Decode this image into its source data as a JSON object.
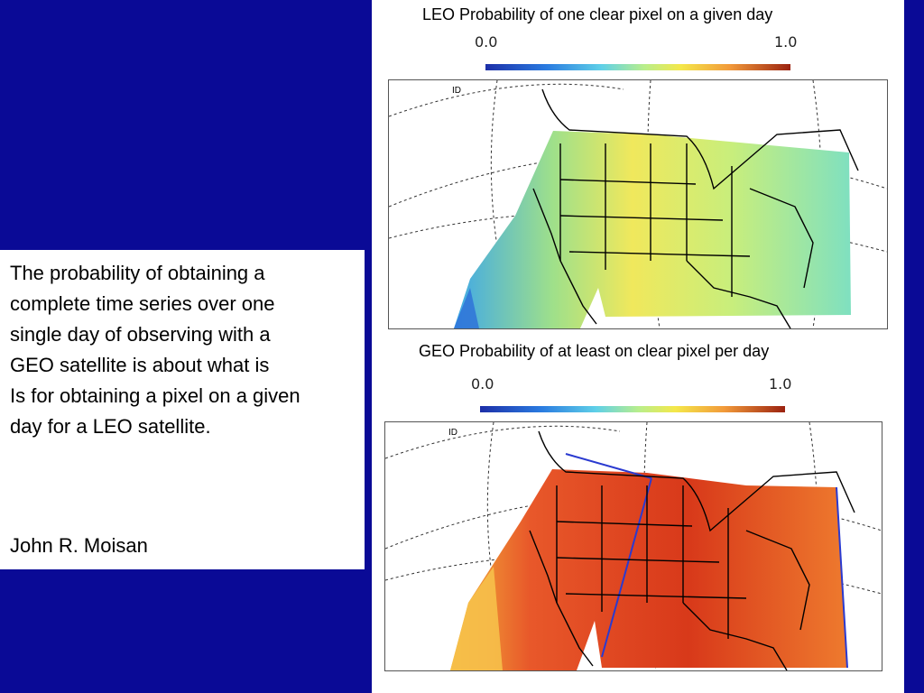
{
  "leo_panel": {
    "title": "LEO Probability of one clear pixel  on a given day",
    "colorbar_min": "0.0",
    "colorbar_max": "1.0",
    "map_marker": "ID",
    "mean_probability_color": "#e6e85a"
  },
  "geo_panel": {
    "title": "GEO Probability of at least on clear pixel  per day",
    "colorbar_min": "0.0",
    "colorbar_max": "1.0",
    "map_marker": "ID",
    "mean_probability_color": "#d8391a"
  },
  "description": {
    "lines": [
      "The probability of obtaining a",
      "complete time series over one",
      "single day of observing with a",
      "GEO satellite is about what is",
      "Is for obtaining a pixel on a given",
      "day for a LEO satellite."
    ],
    "author": "John R. Moisan"
  },
  "colors": {
    "background": "#0a0a96",
    "colorbar_low": "#1d2fa8",
    "colorbar_high": "#9b2210"
  }
}
